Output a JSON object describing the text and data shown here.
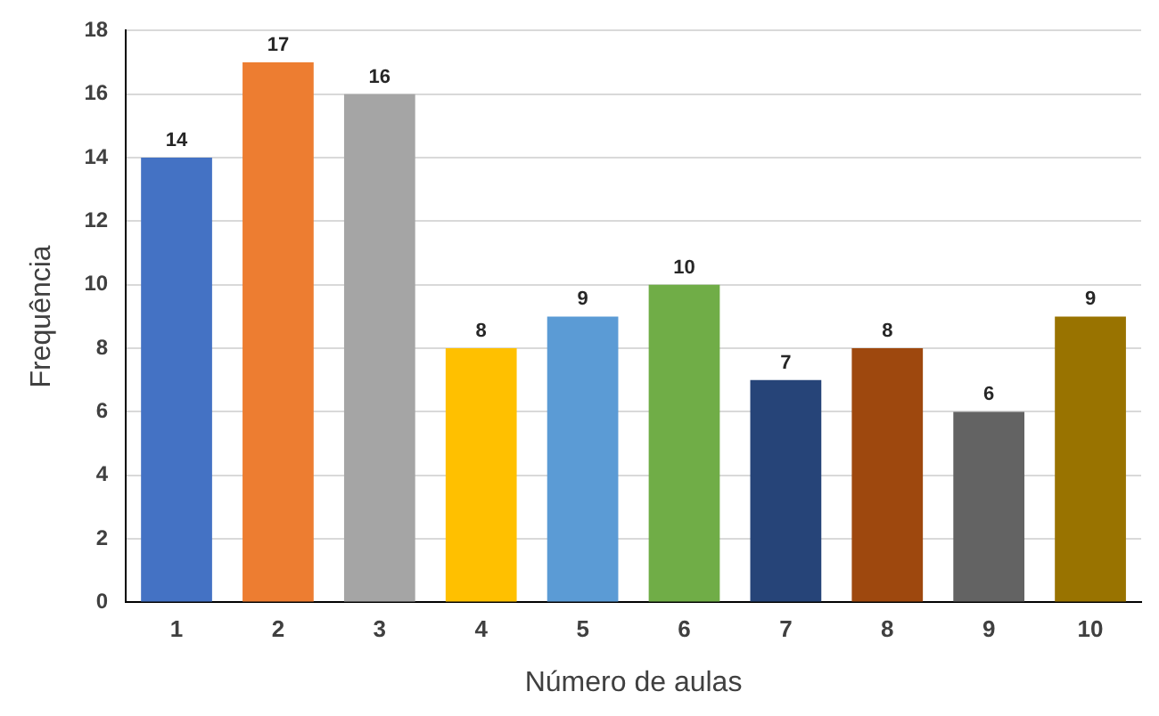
{
  "chart_data": {
    "type": "bar",
    "xlabel": "Número de aulas",
    "ylabel": "Frequência",
    "categories": [
      "1",
      "2",
      "3",
      "4",
      "5",
      "6",
      "7",
      "8",
      "9",
      "10"
    ],
    "values": [
      14,
      17,
      16,
      8,
      9,
      10,
      7,
      8,
      6,
      9
    ],
    "colors": [
      "#4472c4",
      "#ed7d31",
      "#a5a5a5",
      "#ffc000",
      "#5b9bd5",
      "#70ad47",
      "#264478",
      "#9e480e",
      "#636363",
      "#997300"
    ],
    "ylim": [
      0,
      18
    ],
    "yticks": [
      0,
      2,
      4,
      6,
      8,
      10,
      12,
      14,
      16,
      18
    ],
    "grid": "y",
    "data_labels": true,
    "legend": false
  }
}
